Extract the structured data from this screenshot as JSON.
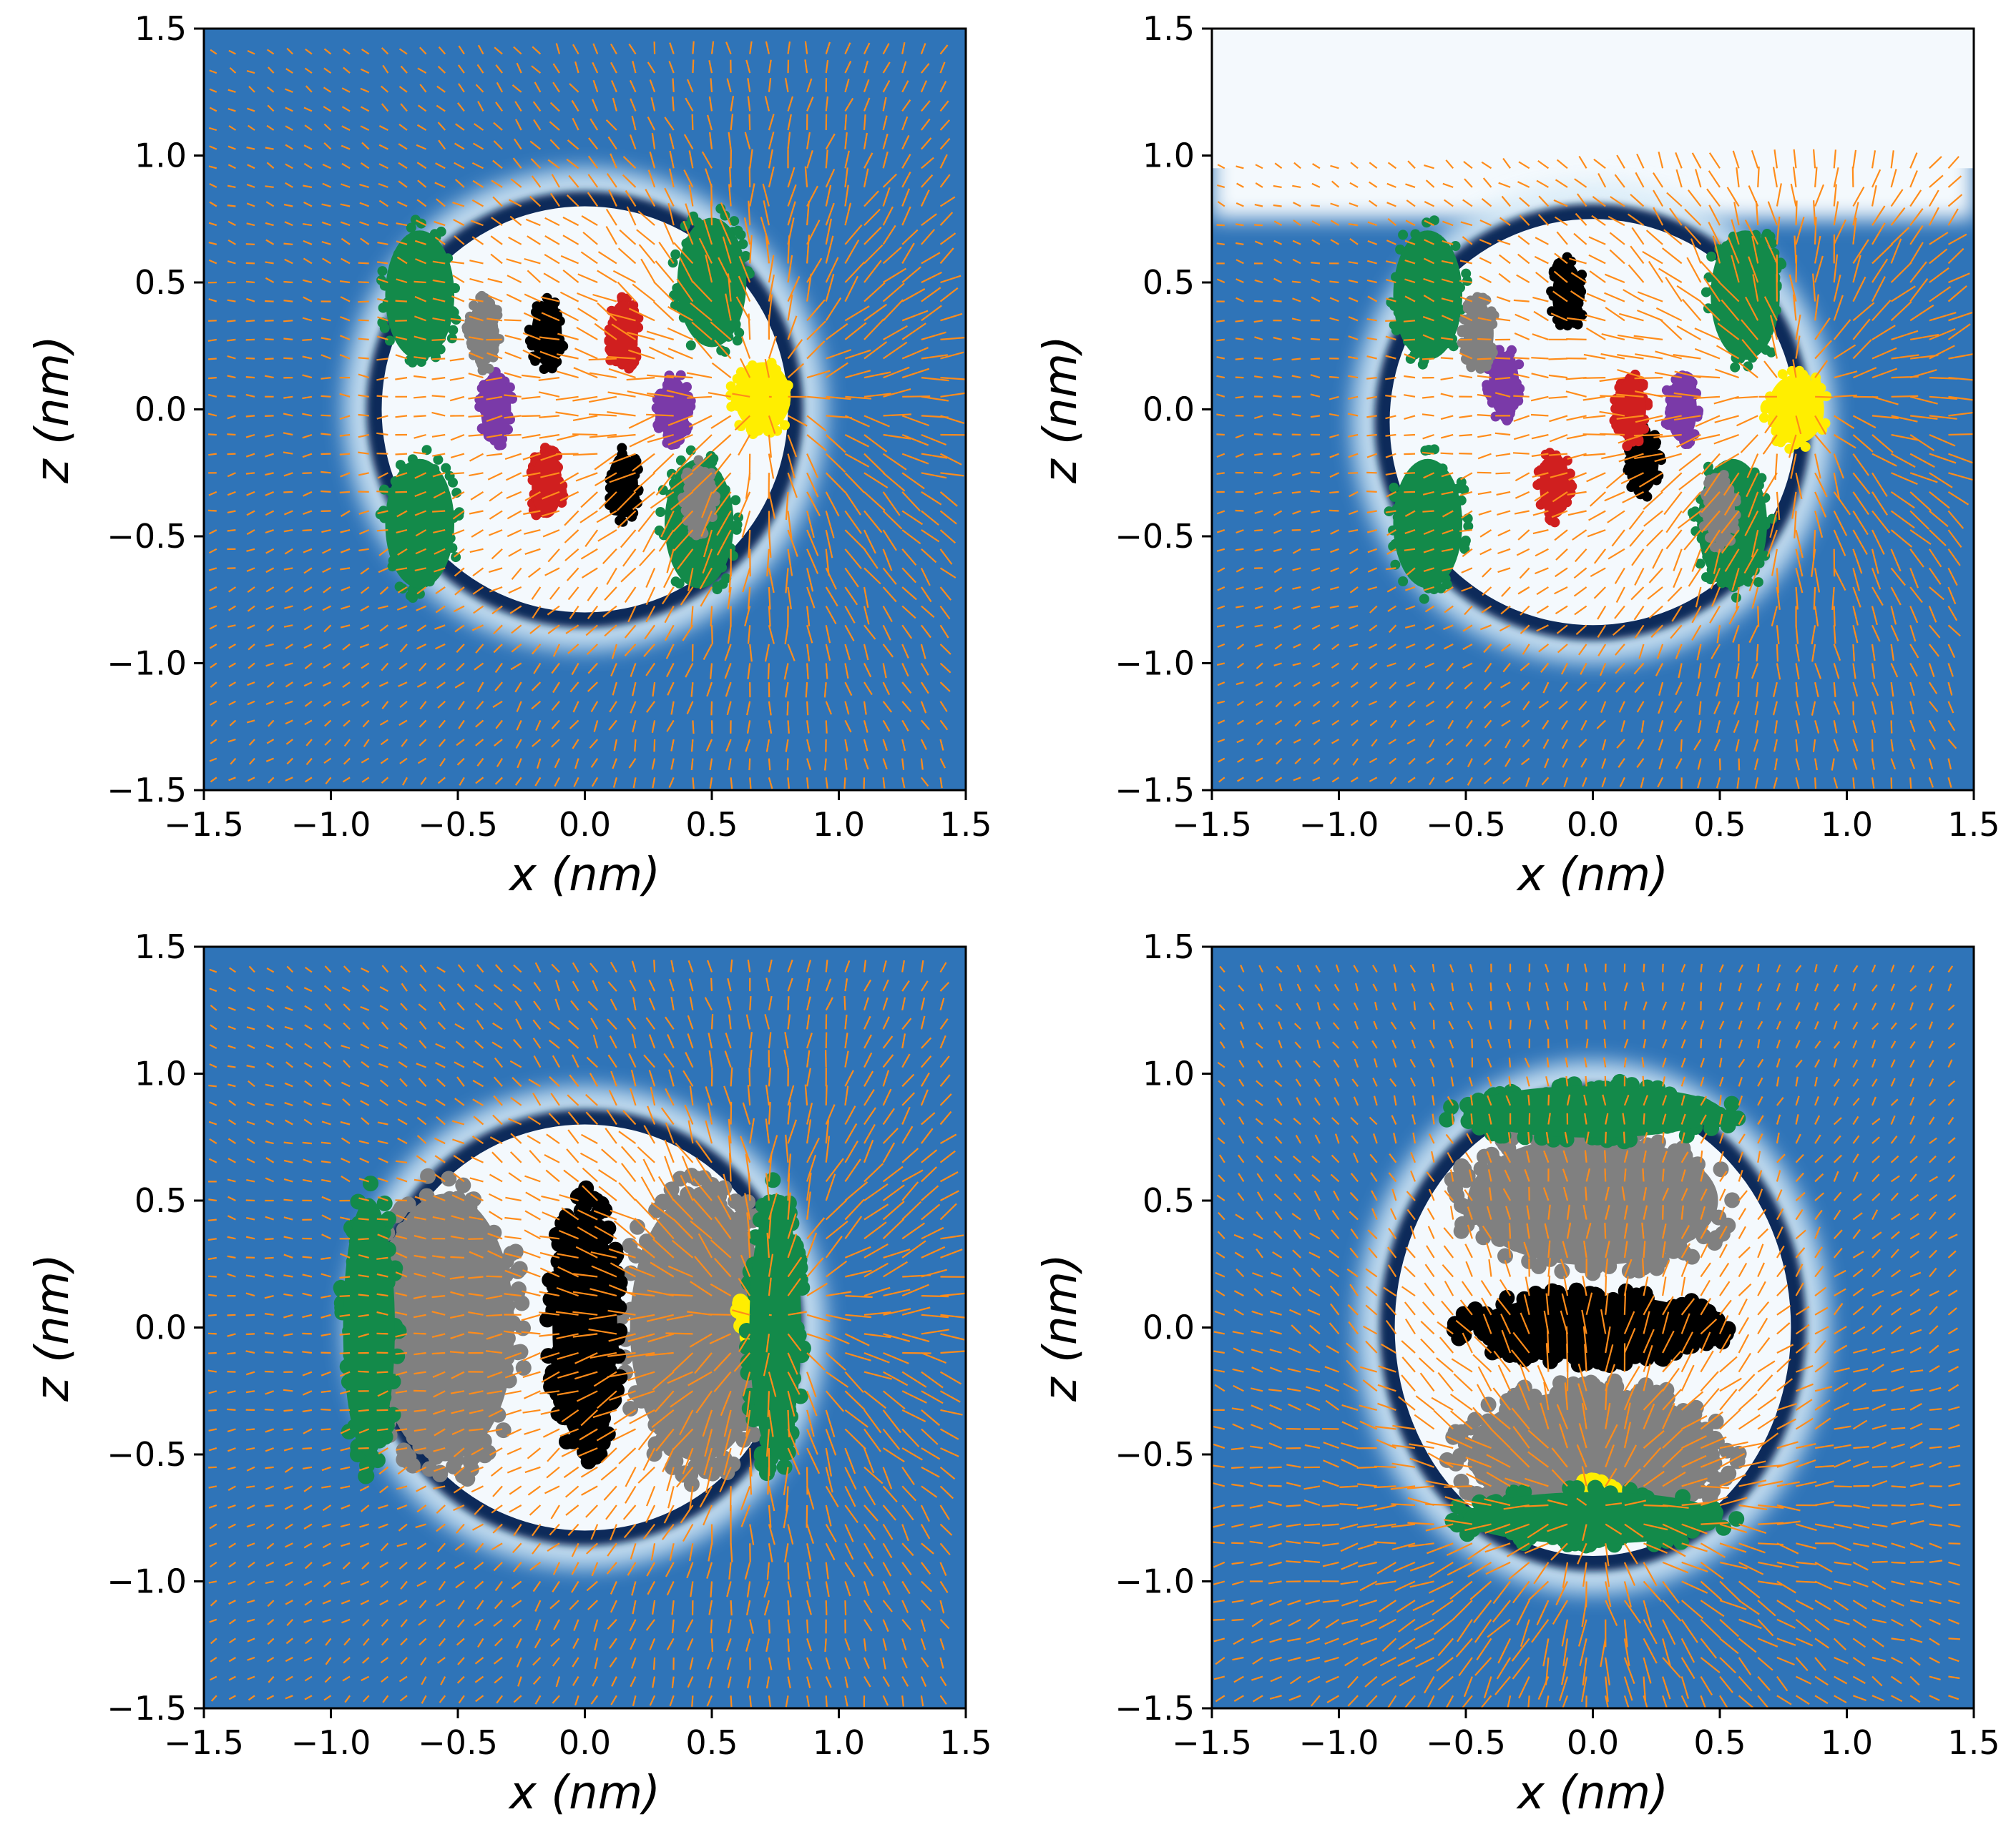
{
  "figure": {
    "panels": [
      {
        "id": "top-left",
        "description": ""
      },
      {
        "id": "top-right",
        "description": ""
      },
      {
        "id": "bottom-left",
        "description": ""
      },
      {
        "id": "bottom-right",
        "description": ""
      }
    ]
  },
  "colors": {
    "background_field": "#2f74b8",
    "field_dark": "#0b2a5a",
    "field_light": "#d9ecf8",
    "cavity": "#f4f9fd",
    "arrows": "#ff8c1a",
    "green": "#138a4a",
    "red": "#d01f1f",
    "black": "#000000",
    "gray": "#808080",
    "purple": "#7a3aa8",
    "yellow": "#ffee00"
  },
  "chart_data": [
    {
      "type": "heatmap",
      "panel": "top-left",
      "xlabel": "x (nm)",
      "ylabel": "z (nm)",
      "xlim": [
        -1.5,
        1.5
      ],
      "ylim": [
        -1.5,
        1.5
      ],
      "xticks": [
        "−1.5",
        "−1.0",
        "−0.5",
        "0.0",
        "0.5",
        "1.0",
        "1.5"
      ],
      "yticks": [
        "1.5",
        "1.0",
        "0.5",
        "0.0",
        "−0.5",
        "−1.0",
        "−1.5"
      ],
      "vector_field": true,
      "grid": false,
      "legend": "none",
      "clusters": [
        {
          "color": "yellow",
          "center": [
            0.7,
            0.05
          ]
        },
        {
          "color": "green",
          "center": [
            -0.65,
            0.45
          ]
        },
        {
          "color": "green",
          "center": [
            -0.65,
            -0.45
          ]
        },
        {
          "color": "green",
          "center": [
            0.5,
            0.5
          ]
        },
        {
          "color": "green",
          "center": [
            0.45,
            -0.45
          ]
        },
        {
          "color": "black",
          "center": [
            -0.15,
            0.3
          ]
        },
        {
          "color": "black",
          "center": [
            0.15,
            -0.3
          ]
        },
        {
          "color": "red",
          "center": [
            -0.15,
            -0.3
          ]
        },
        {
          "color": "red",
          "center": [
            0.15,
            0.3
          ]
        },
        {
          "color": "purple",
          "center": [
            -0.35,
            0.0
          ]
        },
        {
          "color": "purple",
          "center": [
            0.35,
            0.0
          ]
        },
        {
          "color": "gray",
          "center": [
            -0.4,
            0.3
          ]
        },
        {
          "color": "gray",
          "center": [
            0.45,
            -0.35
          ]
        }
      ]
    },
    {
      "type": "heatmap",
      "panel": "top-right",
      "xlabel": "x (nm)",
      "ylabel": "z (nm)",
      "xlim": [
        -1.5,
        1.5
      ],
      "ylim": [
        -1.5,
        1.5
      ],
      "xticks": [
        "−1.5",
        "−1.0",
        "−0.5",
        "0.0",
        "0.5",
        "1.0",
        "1.5"
      ],
      "yticks": [
        "1.5",
        "1.0",
        "0.5",
        "0.0",
        "−0.5",
        "−1.0",
        "−1.5"
      ],
      "vector_field": true,
      "grid": false,
      "legend": "none",
      "clusters": [
        {
          "color": "yellow",
          "center": [
            0.8,
            0.0
          ]
        },
        {
          "color": "green",
          "center": [
            -0.65,
            0.45
          ]
        },
        {
          "color": "green",
          "center": [
            -0.65,
            -0.45
          ]
        },
        {
          "color": "green",
          "center": [
            0.6,
            0.45
          ]
        },
        {
          "color": "green",
          "center": [
            0.55,
            -0.45
          ]
        },
        {
          "color": "black",
          "center": [
            -0.1,
            0.45
          ]
        },
        {
          "color": "black",
          "center": [
            0.2,
            -0.2
          ]
        },
        {
          "color": "red",
          "center": [
            -0.15,
            -0.3
          ]
        },
        {
          "color": "red",
          "center": [
            0.15,
            0.0
          ]
        },
        {
          "color": "purple",
          "center": [
            -0.35,
            0.1
          ]
        },
        {
          "color": "purple",
          "center": [
            0.35,
            0.0
          ]
        },
        {
          "color": "gray",
          "center": [
            -0.45,
            0.3
          ]
        },
        {
          "color": "gray",
          "center": [
            0.5,
            -0.4
          ]
        }
      ]
    },
    {
      "type": "heatmap",
      "panel": "bottom-left",
      "xlabel": "x (nm)",
      "ylabel": "z (nm)",
      "xlim": [
        -1.5,
        1.5
      ],
      "ylim": [
        -1.5,
        1.5
      ],
      "xticks": [
        "−1.5",
        "−1.0",
        "−0.5",
        "0.0",
        "0.5",
        "1.0",
        "1.5"
      ],
      "yticks": [
        "1.5",
        "1.0",
        "0.5",
        "0.0",
        "−0.5",
        "−1.0",
        "−1.5"
      ],
      "vector_field": true,
      "grid": false,
      "legend": "none",
      "clusters": [
        {
          "color": "gray",
          "center": [
            -0.55,
            0.0
          ]
        },
        {
          "color": "gray",
          "center": [
            0.45,
            0.0
          ]
        },
        {
          "color": "black",
          "center": [
            0.0,
            0.0
          ]
        },
        {
          "color": "yellow",
          "center": [
            0.72,
            0.05
          ]
        },
        {
          "color": "green",
          "center": [
            -0.85,
            0.0
          ]
        },
        {
          "color": "green",
          "center": [
            0.75,
            0.0
          ]
        }
      ]
    },
    {
      "type": "heatmap",
      "panel": "bottom-right",
      "xlabel": "x (nm)",
      "ylabel": "z (nm)",
      "xlim": [
        -1.5,
        1.5
      ],
      "ylim": [
        -1.5,
        1.5
      ],
      "xticks": [
        "−1.5",
        "−1.0",
        "−0.5",
        "0.0",
        "0.5",
        "1.0",
        "1.5"
      ],
      "yticks": [
        "1.5",
        "1.0",
        "0.5",
        "0.0",
        "−0.5",
        "−1.0",
        "−1.5"
      ],
      "vector_field": true,
      "grid": false,
      "legend": "none",
      "clusters": [
        {
          "color": "gray",
          "center": [
            0.0,
            0.5
          ]
        },
        {
          "color": "gray",
          "center": [
            0.0,
            -0.5
          ]
        },
        {
          "color": "black",
          "center": [
            0.0,
            0.0
          ]
        },
        {
          "color": "yellow",
          "center": [
            0.0,
            -0.72
          ]
        },
        {
          "color": "green",
          "center": [
            0.0,
            0.85
          ]
        },
        {
          "color": "green",
          "center": [
            0.0,
            -0.75
          ]
        }
      ]
    }
  ]
}
